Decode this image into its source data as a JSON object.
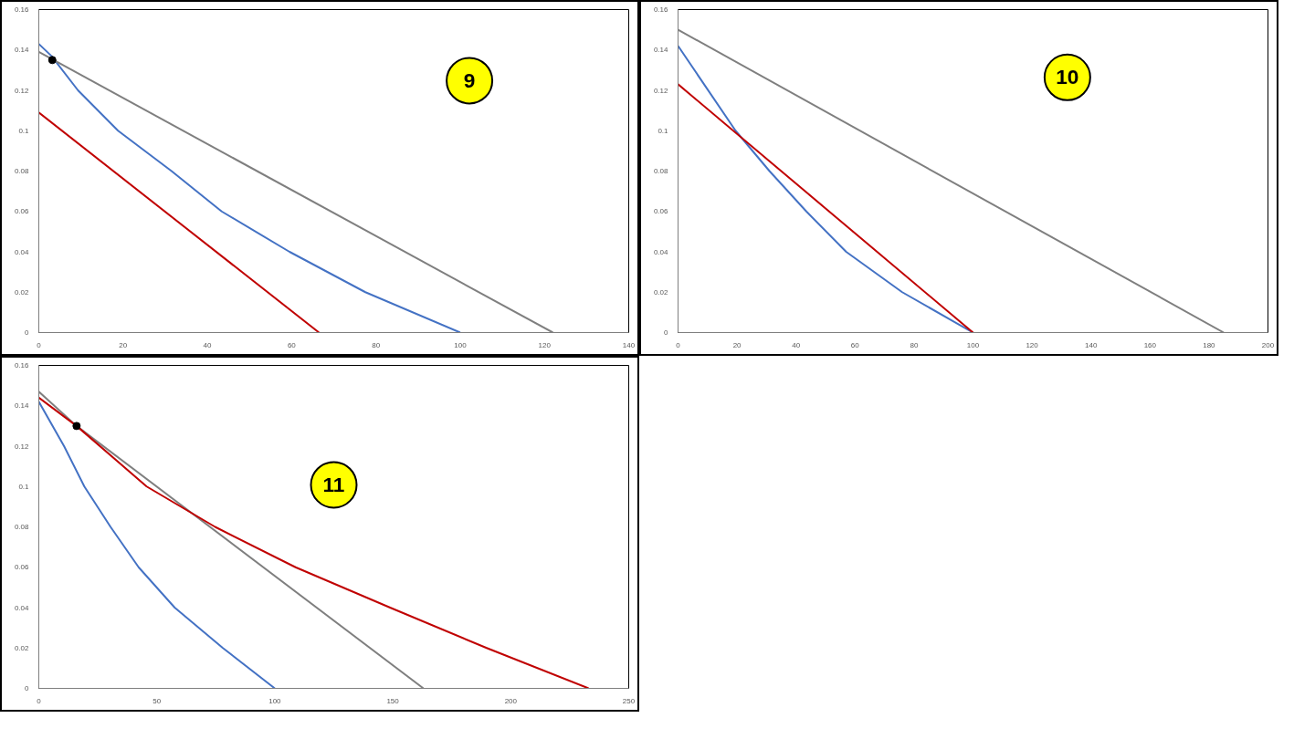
{
  "chart_data": [
    {
      "type": "line",
      "annotations": [
        "9"
      ],
      "xlim": [
        0,
        140
      ],
      "xticks": [
        0,
        20,
        40,
        60,
        80,
        100,
        120,
        140
      ],
      "ylim": [
        0,
        0.16
      ],
      "yticks": [
        0,
        0.02,
        0.04,
        0.06,
        0.08,
        0.1,
        0.12,
        0.14,
        0.16
      ],
      "grid": false,
      "series": [
        {
          "color": "#4472c4",
          "x": [
            0,
            3,
            9.3,
            18.8,
            31.5,
            43.4,
            59.5,
            77.5,
            100
          ],
          "values": [
            0.143,
            0.137,
            0.12,
            0.1,
            0.08,
            0.06,
            0.04,
            0.02,
            0
          ]
        },
        {
          "color": "#7f7f7f",
          "x": [
            0,
            122
          ],
          "values": [
            0.139,
            0
          ]
        },
        {
          "color": "#c00000",
          "x": [
            0,
            66.5
          ],
          "values": [
            0.109,
            0
          ]
        },
        {
          "type": "scatter",
          "marker": "circle",
          "color": "#000000",
          "x": [
            3.2
          ],
          "values": [
            0.135
          ]
        }
      ]
    },
    {
      "type": "line",
      "annotations": [
        "10"
      ],
      "xlim": [
        0,
        200
      ],
      "xticks": [
        0,
        20,
        40,
        60,
        80,
        100,
        120,
        140,
        160,
        180,
        200
      ],
      "ylim": [
        0,
        0.16
      ],
      "yticks": [
        0,
        0.02,
        0.04,
        0.06,
        0.08,
        0.1,
        0.12,
        0.14,
        0.16
      ],
      "grid": false,
      "series": [
        {
          "color": "#7f7f7f",
          "x": [
            0,
            185
          ],
          "values": [
            0.15,
            0
          ]
        },
        {
          "color": "#4472c4",
          "x": [
            0,
            19.5,
            31,
            43.5,
            57,
            76,
            100
          ],
          "values": [
            0.142,
            0.1,
            0.08,
            0.06,
            0.04,
            0.02,
            0
          ]
        },
        {
          "color": "#c00000",
          "x": [
            0,
            100
          ],
          "values": [
            0.123,
            0
          ]
        }
      ]
    },
    {
      "type": "line",
      "annotations": [
        "11"
      ],
      "xlim": [
        0,
        250
      ],
      "xticks": [
        0,
        50,
        100,
        150,
        200,
        250
      ],
      "ylim": [
        0,
        0.16
      ],
      "yticks": [
        0,
        0.02,
        0.04,
        0.06,
        0.08,
        0.1,
        0.12,
        0.14,
        0.16
      ],
      "grid": false,
      "series": [
        {
          "color": "#4472c4",
          "x": [
            0,
            10.7,
            19.3,
            30.4,
            42.3,
            57.6,
            78,
            100
          ],
          "values": [
            0.142,
            0.12,
            0.1,
            0.08,
            0.06,
            0.04,
            0.02,
            0
          ]
        },
        {
          "color": "#7f7f7f",
          "x": [
            0,
            16,
            163
          ],
          "values": [
            0.147,
            0.13,
            0
          ]
        },
        {
          "color": "#c00000",
          "x": [
            0,
            16,
            45.7,
            74.7,
            108.8,
            148.9,
            189.8,
            233
          ],
          "values": [
            0.144,
            0.13,
            0.1,
            0.08,
            0.06,
            0.04,
            0.02,
            0
          ]
        },
        {
          "type": "scatter",
          "marker": "circle",
          "color": "#000000",
          "x": [
            16
          ],
          "values": [
            0.13
          ]
        }
      ]
    }
  ]
}
